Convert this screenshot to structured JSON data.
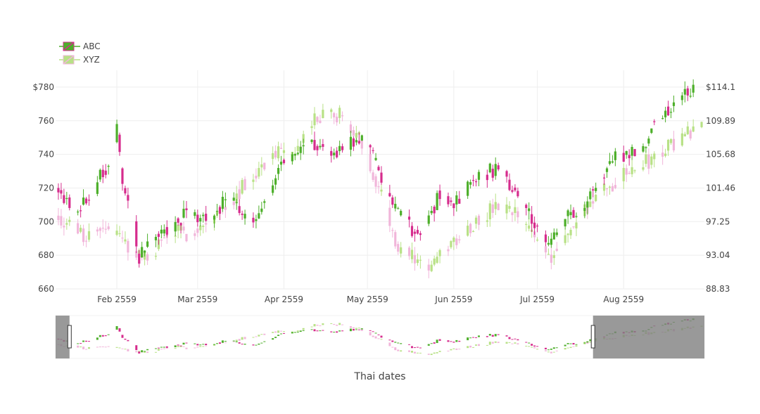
{
  "chart_data": {
    "type": "candlestick",
    "title": "",
    "xlabel": "Thai dates",
    "x_tick_labels": [
      "Feb 2559",
      "Mar 2559",
      "Apr 2559",
      "May 2559",
      "Jun 2559",
      "Jul 2559",
      "Aug 2559"
    ],
    "x_range": [
      "2016-01-10",
      "2016-08-30"
    ],
    "y_left": {
      "tick_labels": [
        "$780",
        "760",
        "740",
        "720",
        "700",
        "680",
        "660"
      ],
      "range": [
        660,
        790
      ]
    },
    "y_right": {
      "tick_labels": [
        "$114.1",
        "109.89",
        "105.68",
        "101.46",
        "97.25",
        "93.04",
        "88.83"
      ],
      "range": [
        88.83,
        116.21
      ]
    },
    "legend": {
      "position": "top-left"
    },
    "rangeslider": {
      "visible": true,
      "selected_range": [
        "2016-01-15",
        "2016-07-21"
      ]
    },
    "series": [
      {
        "name": "ABC",
        "axis": "left",
        "increasing_color": "#4daf2a",
        "decreasing_color": "#d62c8d",
        "anchors": [
          [
            "2016-01-11",
            720
          ],
          [
            "2016-01-18",
            705
          ],
          [
            "2016-01-22",
            716
          ],
          [
            "2016-01-29",
            735
          ],
          [
            "2016-02-01",
            762
          ],
          [
            "2016-02-03",
            722
          ],
          [
            "2016-02-06",
            710
          ],
          [
            "2016-02-09",
            678
          ],
          [
            "2016-02-16",
            692
          ],
          [
            "2016-02-26",
            705
          ],
          [
            "2016-03-05",
            702
          ],
          [
            "2016-03-12",
            713
          ],
          [
            "2016-03-20",
            698
          ],
          [
            "2016-03-28",
            720
          ],
          [
            "2016-04-01",
            738
          ],
          [
            "2016-04-12",
            746
          ],
          [
            "2016-04-20",
            741
          ],
          [
            "2016-04-30",
            752
          ],
          [
            "2016-05-06",
            724
          ],
          [
            "2016-05-13",
            702
          ],
          [
            "2016-05-20",
            692
          ],
          [
            "2016-05-27",
            716
          ],
          [
            "2016-06-02",
            712
          ],
          [
            "2016-06-10",
            726
          ],
          [
            "2016-06-16",
            732
          ],
          [
            "2016-06-22",
            722
          ],
          [
            "2016-06-30",
            698
          ],
          [
            "2016-07-05",
            685
          ],
          [
            "2016-07-10",
            700
          ],
          [
            "2016-07-20",
            714
          ],
          [
            "2016-07-28",
            738
          ],
          [
            "2016-08-08",
            742
          ],
          [
            "2016-08-12",
            760
          ],
          [
            "2016-08-20",
            773
          ],
          [
            "2016-08-28",
            780
          ]
        ]
      },
      {
        "name": "XYZ",
        "axis": "right",
        "increasing_color": "#b8e186",
        "decreasing_color": "#f1b6da",
        "anchors": [
          [
            "2016-01-11",
            98.0
          ],
          [
            "2016-01-20",
            95.5
          ],
          [
            "2016-01-29",
            97.0
          ],
          [
            "2016-02-05",
            94.0
          ],
          [
            "2016-02-12",
            92.5
          ],
          [
            "2016-02-20",
            96.0
          ],
          [
            "2016-02-26",
            95.8
          ],
          [
            "2016-03-05",
            97.2
          ],
          [
            "2016-03-12",
            99.5
          ],
          [
            "2016-03-22",
            103.6
          ],
          [
            "2016-03-29",
            106.0
          ],
          [
            "2016-04-04",
            105.0
          ],
          [
            "2016-04-12",
            110.0
          ],
          [
            "2016-04-21",
            110.8
          ],
          [
            "2016-04-28",
            107.5
          ],
          [
            "2016-05-06",
            101.0
          ],
          [
            "2016-05-12",
            94.0
          ],
          [
            "2016-05-24",
            91.5
          ],
          [
            "2016-05-31",
            94.5
          ],
          [
            "2016-06-08",
            97.0
          ],
          [
            "2016-06-16",
            99.0
          ],
          [
            "2016-06-24",
            98.0
          ],
          [
            "2016-06-30",
            95.5
          ],
          [
            "2016-07-06",
            93.0
          ],
          [
            "2016-07-13",
            96.0
          ],
          [
            "2016-07-20",
            99.5
          ],
          [
            "2016-07-25",
            101.0
          ],
          [
            "2016-08-03",
            103.5
          ],
          [
            "2016-08-13",
            105.5
          ],
          [
            "2016-08-22",
            108.0
          ],
          [
            "2016-08-29",
            109.5
          ]
        ]
      }
    ]
  }
}
